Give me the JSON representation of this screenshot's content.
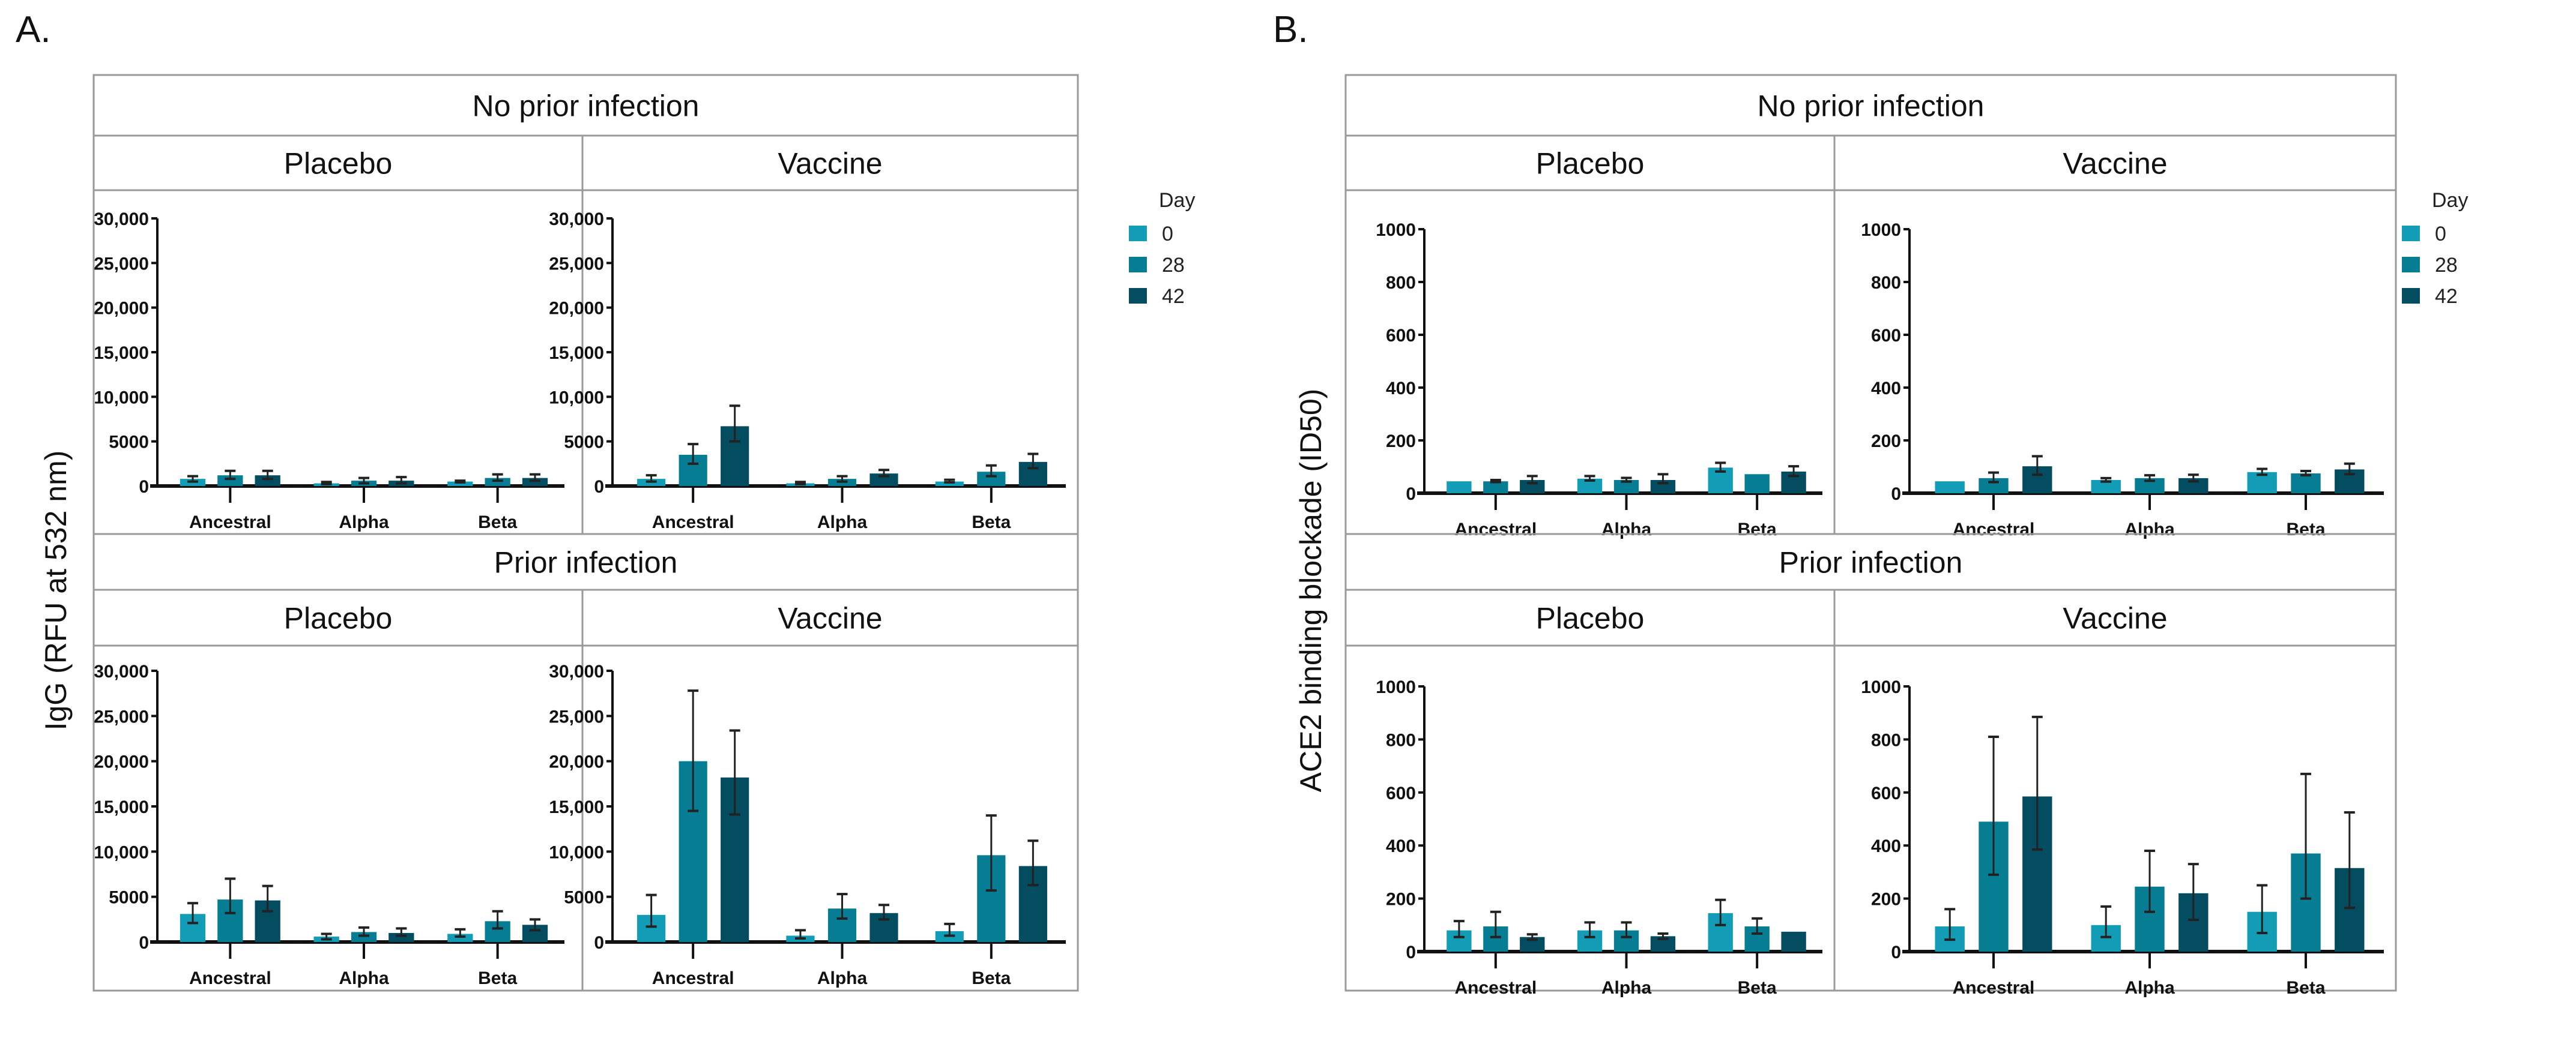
{
  "colors": {
    "day0": "#139cb6",
    "day28": "#077d94",
    "day42": "#044c5f",
    "border": "#9a9a9a"
  },
  "chart_data": [
    {
      "type": "bar",
      "panel_label": "A.",
      "ylabel": "IgG (RFU at 532 nm)",
      "ylim": [
        0,
        30000
      ],
      "yticks": [
        0,
        5000,
        10000,
        15000,
        20000,
        25000,
        30000
      ],
      "ytick_labels": [
        "0",
        "5000",
        "10,000",
        "15,000",
        "20,000",
        "25,000",
        "30,000"
      ],
      "categories": [
        "Ancestral",
        "Alpha",
        "Beta"
      ],
      "legend": {
        "title": "Day",
        "entries": [
          "0",
          "28",
          "42"
        ],
        "placement": "right"
      },
      "rows": [
        {
          "title": "No prior infection",
          "panels": [
            {
              "title": "Placebo",
              "means": [
                [
                  800,
                  1200,
                  1200
                ],
                [
                  300,
                  600,
                  600
                ],
                [
                  500,
                  900,
                  900
                ]
              ],
              "lower": [
                [
                  500,
                  800,
                  800
                ],
                [
                  200,
                  300,
                  300
                ],
                [
                  400,
                  600,
                  600
                ]
              ],
              "upper": [
                [
                  1100,
                  1700,
                  1700
                ],
                [
                  450,
                  900,
                  1000
                ],
                [
                  600,
                  1300,
                  1300
                ]
              ]
            },
            {
              "title": "Vaccine",
              "means": [
                [
                  800,
                  3500,
                  6700
                ],
                [
                  300,
                  800,
                  1400
                ],
                [
                  500,
                  1600,
                  2700
                ]
              ],
              "lower": [
                [
                  500,
                  2500,
                  5000
                ],
                [
                  200,
                  500,
                  1100
                ],
                [
                  400,
                  1100,
                  2000
                ]
              ],
              "upper": [
                [
                  1200,
                  4700,
                  9000
                ],
                [
                  450,
                  1100,
                  1800
                ],
                [
                  700,
                  2300,
                  3600
                ]
              ]
            }
          ]
        },
        {
          "title": "Prior infection",
          "panels": [
            {
              "title": "Placebo",
              "means": [
                [
                  3100,
                  4700,
                  4600
                ],
                [
                  600,
                  1100,
                  1000
                ],
                [
                  900,
                  2300,
                  1900
                ]
              ],
              "lower": [
                [
                  2100,
                  3200,
                  3400
                ],
                [
                  300,
                  700,
                  700
                ],
                [
                  600,
                  1500,
                  1300
                ]
              ],
              "upper": [
                [
                  4300,
                  7000,
                  6200
                ],
                [
                  900,
                  1600,
                  1500
                ],
                [
                  1400,
                  3400,
                  2500
                ]
              ]
            },
            {
              "title": "Vaccine",
              "means": [
                [
                  3000,
                  20000,
                  18200
                ],
                [
                  700,
                  3700,
                  3200
                ],
                [
                  1200,
                  9600,
                  8400
                ]
              ],
              "lower": [
                [
                  1700,
                  14500,
                  14100
                ],
                [
                  400,
                  2600,
                  2500
                ],
                [
                  700,
                  5700,
                  6300
                ]
              ],
              "upper": [
                [
                  5200,
                  27800,
                  23400
                ],
                [
                  1300,
                  5300,
                  4100
                ],
                [
                  2000,
                  14000,
                  11200
                ]
              ]
            }
          ]
        }
      ]
    },
    {
      "type": "bar",
      "panel_label": "B.",
      "ylabel": "ACE2 binding blockade (ID50)",
      "ylim": [
        0,
        1000
      ],
      "yticks": [
        0,
        200,
        400,
        600,
        800,
        1000
      ],
      "ytick_labels": [
        "0",
        "200",
        "400",
        "600",
        "800",
        "1000"
      ],
      "categories": [
        "Ancestral",
        "Alpha",
        "Beta"
      ],
      "legend": {
        "title": "Day",
        "entries": [
          "0",
          "28",
          "42"
        ],
        "placement": "right"
      },
      "rows": [
        {
          "title": "No prior infection",
          "panels": [
            {
              "title": "Placebo",
              "means": [
                [
                  45,
                  45,
                  50
                ],
                [
                  55,
                  50,
                  50
                ],
                [
                  97,
                  72,
                  82
                ]
              ],
              "lower": [
                [
                  45,
                  42,
                  38
                ],
                [
                  48,
                  44,
                  38
                ],
                [
                  82,
                  72,
                  65
                ]
              ],
              "upper": [
                [
                  45,
                  50,
                  65
                ],
                [
                  65,
                  58,
                  72
                ],
                [
                  115,
                  72,
                  102
                ]
              ]
            },
            {
              "title": "Vaccine",
              "means": [
                [
                  45,
                  57,
                  102
                ],
                [
                  50,
                  57,
                  57
                ],
                [
                  80,
                  75,
                  90
                ]
              ],
              "lower": [
                [
                  45,
                  42,
                  70
                ],
                [
                  44,
                  47,
                  45
                ],
                [
                  70,
                  68,
                  72
                ]
              ],
              "upper": [
                [
                  45,
                  78,
                  140
                ],
                [
                  57,
                  68,
                  70
                ],
                [
                  92,
                  84,
                  112
                ]
              ]
            }
          ]
        },
        {
          "title": "Prior infection",
          "panels": [
            {
              "title": "Placebo",
              "means": [
                [
                  80,
                  95,
                  55
                ],
                [
                  80,
                  80,
                  58
                ],
                [
                  145,
                  95,
                  75
                ]
              ],
              "lower": [
                [
                  55,
                  55,
                  45
                ],
                [
                  55,
                  55,
                  48
                ],
                [
                  100,
                  68,
                  75
                ]
              ],
              "upper": [
                [
                  115,
                  150,
                  65
                ],
                [
                  110,
                  110,
                  68
                ],
                [
                  195,
                  125,
                  75
                ]
              ]
            },
            {
              "title": "Vaccine",
              "means": [
                [
                  95,
                  490,
                  585
                ],
                [
                  100,
                  245,
                  220
                ],
                [
                  150,
                  370,
                  315
                ]
              ],
              "lower": [
                [
                  45,
                  290,
                  385
                ],
                [
                  55,
                  150,
                  120
                ],
                [
                  70,
                  200,
                  165
                ]
              ],
              "upper": [
                [
                  160,
                  810,
                  885
                ],
                [
                  170,
                  380,
                  330
                ],
                [
                  250,
                  670,
                  525
                ]
              ]
            }
          ]
        }
      ]
    }
  ]
}
